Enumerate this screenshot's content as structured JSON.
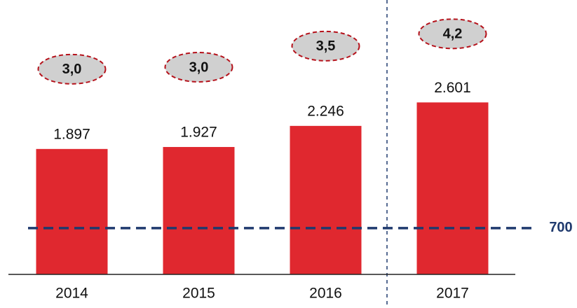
{
  "chart_data": {
    "type": "bar",
    "categories": [
      "2014",
      "2015",
      "2016",
      "2017"
    ],
    "values": [
      1897,
      1927,
      2246,
      2601
    ],
    "value_labels": [
      "1.897",
      "1.927",
      "2.246",
      "2.601"
    ],
    "color": "#e0282f",
    "ylim": [
      0,
      4150
    ],
    "annotations": {
      "values": [
        3.0,
        3.0,
        3.5,
        4.2
      ],
      "value_labels": [
        "3,0",
        "3,0",
        "3,5",
        "4,2"
      ]
    },
    "reference_line": 700
  }
}
